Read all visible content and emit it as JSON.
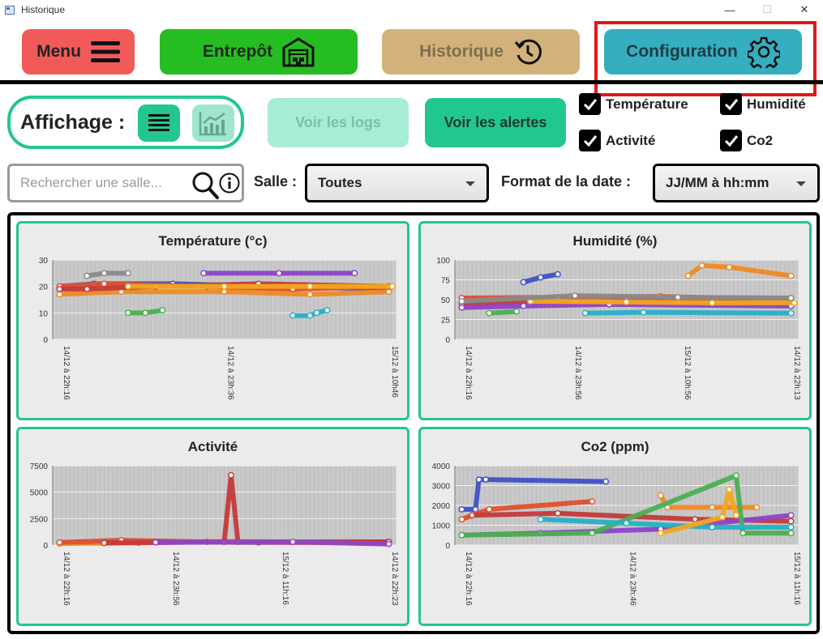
{
  "window": {
    "title": "Historique",
    "minimize": "—",
    "maximize": "☐",
    "close": "✕"
  },
  "nav": {
    "menu": "Menu",
    "entrepot": "Entrepôt",
    "historique": "Historique",
    "configuration": "Configuration"
  },
  "affichage": {
    "label": "Affichage :"
  },
  "actions": {
    "logs": "Voir les logs",
    "alerts": "Voir les alertes"
  },
  "filters": [
    {
      "label": "Température",
      "checked": true
    },
    {
      "label": "Humidité",
      "checked": true
    },
    {
      "label": "Activité",
      "checked": true
    },
    {
      "label": "Co2",
      "checked": true
    }
  ],
  "search": {
    "placeholder": "Rechercher une salle..."
  },
  "salle": {
    "label": "Salle :",
    "value": "Toutes"
  },
  "date_format": {
    "label": "Format de la date :",
    "value": "JJ/MM à hh:mm"
  },
  "colors": {
    "accent": "#22c790",
    "highlight": "#e01818",
    "series": [
      "#3f51c8",
      "#f08a24",
      "#e0502e",
      "#c43a3a",
      "#8e44c8",
      "#4caf50",
      "#26b0c8",
      "#f2a81e",
      "#8a8a8a"
    ]
  },
  "chart_data": [
    {
      "type": "line",
      "title": "Température (°c)",
      "ylim": [
        0,
        30
      ],
      "yticks": [
        "0",
        "10",
        "20",
        "30"
      ],
      "xticks": [
        "14/12 à 22h:16",
        "14/12 à 23h:36",
        "15/12 à 10h46"
      ],
      "series": [
        {
          "values": [
            [
              0.02,
              20
            ],
            [
              0.12,
              21
            ],
            [
              0.35,
              21
            ],
            [
              0.65,
              20
            ],
            [
              0.98,
              19
            ]
          ]
        },
        {
          "values": [
            [
              0.02,
              17
            ],
            [
              0.2,
              18
            ],
            [
              0.5,
              18
            ],
            [
              0.75,
              17
            ],
            [
              0.98,
              18
            ]
          ]
        },
        {
          "values": [
            [
              0.02,
              20
            ],
            [
              0.15,
              21
            ],
            [
              0.45,
              20
            ],
            [
              0.7,
              19
            ],
            [
              0.98,
              20
            ]
          ]
        },
        {
          "values": [
            [
              0.02,
              19
            ],
            [
              0.1,
              19
            ],
            [
              0.3,
              20
            ],
            [
              0.6,
              21
            ],
            [
              0.98,
              20
            ]
          ]
        },
        {
          "values": [
            [
              0.44,
              25
            ],
            [
              0.66,
              25
            ],
            [
              0.88,
              25
            ]
          ]
        },
        {
          "values": [
            [
              0.22,
              10
            ],
            [
              0.27,
              10
            ],
            [
              0.32,
              11
            ]
          ]
        },
        {
          "values": [
            [
              0.7,
              9
            ],
            [
              0.75,
              9
            ],
            [
              0.77,
              10
            ],
            [
              0.8,
              11
            ]
          ]
        },
        {
          "values": [
            [
              0.22,
              20
            ],
            [
              0.5,
              20
            ],
            [
              0.75,
              20
            ],
            [
              0.99,
              20
            ]
          ]
        },
        {
          "values": [
            [
              0.1,
              24
            ],
            [
              0.15,
              25
            ],
            [
              0.22,
              25
            ]
          ]
        }
      ]
    },
    {
      "type": "line",
      "title": "Humidité (%)",
      "ylim": [
        0,
        100
      ],
      "yticks": [
        "0",
        "25",
        "50",
        "75",
        "100"
      ],
      "xticks": [
        "14/12 à 22h:16",
        "14/12 à 23h:56",
        "15/12 à 10h:56",
        "14/12 à 22h:13"
      ],
      "series": [
        {
          "values": [
            [
              0.2,
              72
            ],
            [
              0.25,
              78
            ],
            [
              0.3,
              82
            ]
          ]
        },
        {
          "values": [
            [
              0.68,
              80
            ],
            [
              0.72,
              93
            ],
            [
              0.8,
              91
            ],
            [
              0.98,
              80
            ]
          ]
        },
        {
          "values": [
            [
              0.02,
              52
            ],
            [
              0.3,
              53
            ],
            [
              0.6,
              54
            ],
            [
              0.98,
              50
            ]
          ]
        },
        {
          "values": [
            [
              0.02,
              45
            ],
            [
              0.35,
              47
            ],
            [
              0.65,
              48
            ],
            [
              0.98,
              45
            ]
          ]
        },
        {
          "values": [
            [
              0.02,
              40
            ],
            [
              0.2,
              42
            ],
            [
              0.45,
              44
            ],
            [
              0.98,
              42
            ]
          ]
        },
        {
          "values": [
            [
              0.1,
              33
            ],
            [
              0.18,
              35
            ]
          ]
        },
        {
          "values": [
            [
              0.38,
              33
            ],
            [
              0.55,
              34
            ],
            [
              0.98,
              33
            ]
          ]
        },
        {
          "values": [
            [
              0.22,
              48
            ],
            [
              0.5,
              47
            ],
            [
              0.75,
              46
            ],
            [
              0.99,
              46
            ]
          ]
        },
        {
          "values": [
            [
              0.02,
              48
            ],
            [
              0.35,
              55
            ],
            [
              0.65,
              53
            ],
            [
              0.98,
              52
            ]
          ]
        }
      ]
    },
    {
      "type": "line",
      "title": "Activité",
      "ylim": [
        0,
        7500
      ],
      "yticks": [
        "0",
        "2500",
        "5000",
        "7500"
      ],
      "xticks": [
        "14/12 à 22h:16",
        "14/12 à 23h:56",
        "15/12 à 11h:16",
        "14/12 à 22h:23"
      ],
      "series": [
        {
          "values": [
            [
              0.02,
              200
            ],
            [
              0.3,
              300
            ],
            [
              0.6,
              250
            ],
            [
              0.98,
              300
            ]
          ]
        },
        {
          "values": [
            [
              0.02,
              150
            ],
            [
              0.25,
              200
            ],
            [
              0.5,
              350
            ],
            [
              0.98,
              150
            ]
          ]
        },
        {
          "values": [
            [
              0.02,
              250
            ],
            [
              0.2,
              450
            ],
            [
              0.45,
              300
            ],
            [
              0.98,
              200
            ]
          ]
        },
        {
          "values": [
            [
              0.15,
              200
            ],
            [
              0.5,
              300
            ],
            [
              0.52,
              6600
            ],
            [
              0.54,
              300
            ],
            [
              0.98,
              300
            ]
          ]
        },
        {
          "values": [
            [
              0.3,
              250
            ],
            [
              0.7,
              300
            ],
            [
              0.98,
              100
            ]
          ]
        }
      ]
    },
    {
      "type": "line",
      "title": "Co2 (ppm)",
      "ylim": [
        0,
        4000
      ],
      "yticks": [
        "0",
        "1000",
        "2000",
        "3000",
        "4000"
      ],
      "xticks": [
        "14/12 à 22h:16",
        "14/12 à 23h:46",
        "15/12 à 11h:16"
      ],
      "series": [
        {
          "values": [
            [
              0.02,
              1800
            ],
            [
              0.06,
              1800
            ],
            [
              0.07,
              3300
            ],
            [
              0.09,
              3300
            ],
            [
              0.44,
              3200
            ]
          ]
        },
        {
          "values": [
            [
              0.6,
              2500
            ],
            [
              0.62,
              1900
            ],
            [
              0.75,
              1900
            ],
            [
              0.88,
              1900
            ]
          ]
        },
        {
          "values": [
            [
              0.02,
              1300
            ],
            [
              0.1,
              1800
            ],
            [
              0.4,
              2200
            ]
          ]
        },
        {
          "values": [
            [
              0.05,
              1500
            ],
            [
              0.3,
              1600
            ],
            [
              0.7,
              1300
            ],
            [
              0.98,
              1200
            ]
          ]
        },
        {
          "values": [
            [
              0.02,
              500
            ],
            [
              0.25,
              600
            ],
            [
              0.6,
              800
            ],
            [
              0.98,
              1500
            ]
          ]
        },
        {
          "values": [
            [
              0.02,
              500
            ],
            [
              0.4,
              600
            ],
            [
              0.82,
              3500
            ],
            [
              0.84,
              600
            ],
            [
              0.98,
              600
            ]
          ]
        },
        {
          "values": [
            [
              0.25,
              1300
            ],
            [
              0.5,
              1100
            ],
            [
              0.75,
              900
            ],
            [
              0.98,
              900
            ]
          ]
        },
        {
          "values": [
            [
              0.6,
              600
            ],
            [
              0.78,
              1400
            ],
            [
              0.8,
              2800
            ],
            [
              0.82,
              1500
            ]
          ]
        }
      ]
    }
  ]
}
